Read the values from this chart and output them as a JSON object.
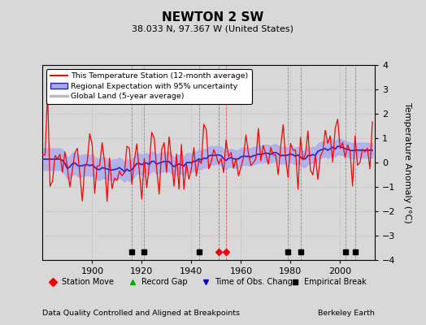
{
  "title": "NEWTON 2 SW",
  "subtitle": "38.033 N, 97.367 W (United States)",
  "ylabel": "Temperature Anomaly (°C)",
  "xlabel_note": "Data Quality Controlled and Aligned at Breakpoints",
  "credit": "Berkeley Earth",
  "ylim": [
    -4,
    4
  ],
  "xlim": [
    1880,
    2014
  ],
  "xticks": [
    1900,
    1920,
    1940,
    1960,
    1980,
    2000
  ],
  "yticks": [
    -4,
    -3,
    -2,
    -1,
    0,
    1,
    2,
    3,
    4
  ],
  "background_color": "#d8d8d8",
  "plot_bg_color": "#d8d8d8",
  "station_color": "#ff0000",
  "regional_fill_color": "#aaaaee",
  "regional_line_color": "#2222cc",
  "global_color": "#bbbbbb",
  "station_move_years": [
    1951,
    1954
  ],
  "empirical_break_years": [
    1916,
    1921,
    1943,
    1979,
    1984,
    2002,
    2006
  ],
  "time_obs_change_years": [],
  "record_gap_years": [],
  "seed": 137
}
